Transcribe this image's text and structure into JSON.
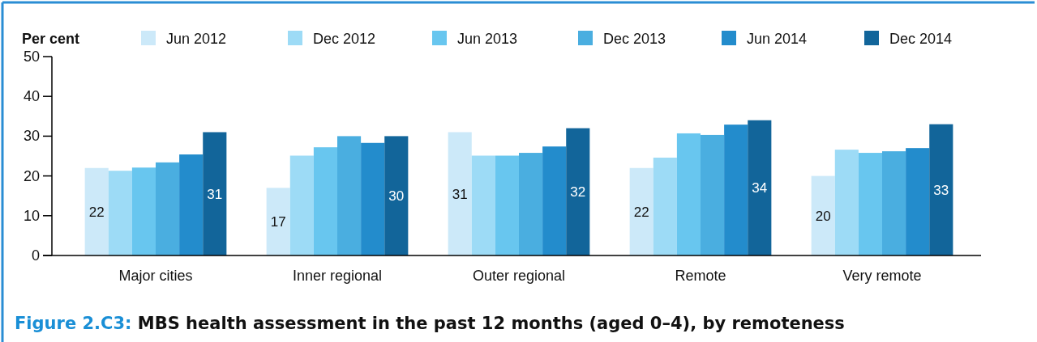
{
  "chart_data": {
    "type": "bar",
    "title": "Figure 2.C3: MBS health assessment in the past 12 months (aged 0–4), by remoteness",
    "ylabel": "Per cent",
    "categories": [
      "Major cities",
      "Inner regional",
      "Outer regional",
      "Remote",
      "Very remote"
    ],
    "ylim": [
      0,
      50
    ],
    "yticks": [
      0,
      10,
      20,
      30,
      40,
      50
    ],
    "legend": "top",
    "grid": false,
    "series": [
      {
        "name": "Jun 2012",
        "color": "#cce9f9",
        "values": [
          22,
          17,
          31,
          22,
          20
        ],
        "value_labels": [
          "22",
          "17",
          "31",
          "22",
          "20"
        ]
      },
      {
        "name": "Dec 2012",
        "color": "#9ddbf6",
        "values": [
          21.3,
          25.1,
          25.1,
          24.6,
          26.6
        ]
      },
      {
        "name": "Jun 2013",
        "color": "#68c6ef",
        "values": [
          22.1,
          27.2,
          25.1,
          30.7,
          25.8
        ]
      },
      {
        "name": "Dec 2013",
        "color": "#4aaee0",
        "values": [
          23.4,
          30.0,
          25.8,
          30.3,
          26.2
        ]
      },
      {
        "name": "Jun 2014",
        "color": "#238ccc",
        "values": [
          25.4,
          28.3,
          27.4,
          32.9,
          27.0
        ]
      },
      {
        "name": "Dec 2014",
        "color": "#12659a",
        "values": [
          31,
          30,
          32,
          34,
          33
        ],
        "value_labels": [
          "31",
          "30",
          "32",
          "34",
          "33"
        ]
      }
    ]
  }
}
